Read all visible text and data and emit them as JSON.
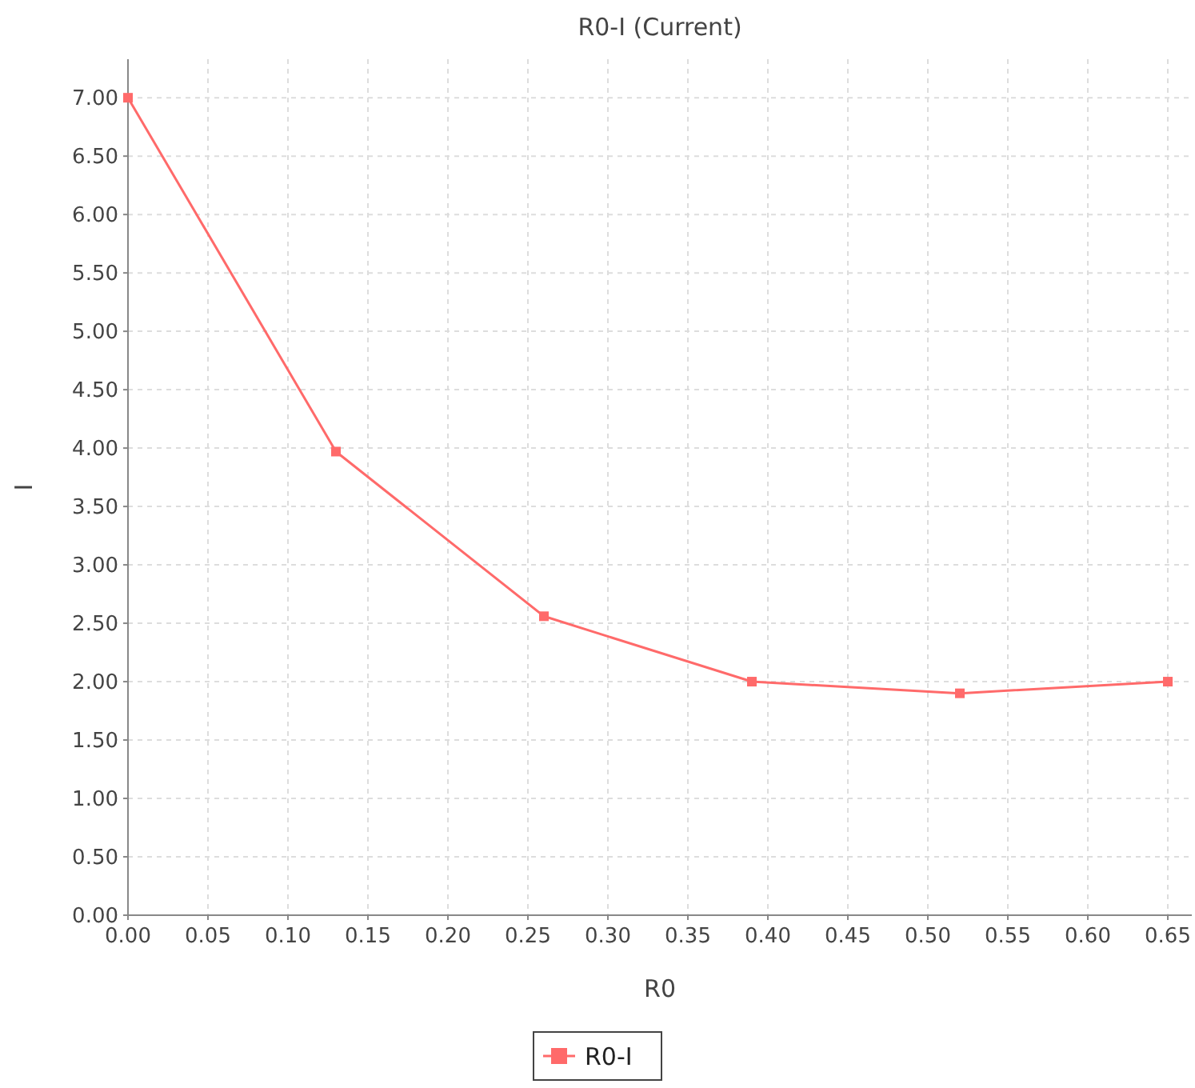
{
  "chart_data": {
    "type": "line",
    "title": "R0-I (Current)",
    "xlabel": "R0",
    "ylabel": "I",
    "x": [
      0,
      0.13,
      0.26,
      0.39,
      0.52,
      0.65
    ],
    "series": [
      {
        "name": "R0-I",
        "color": "#ff6a6a",
        "values": [
          7.0,
          3.97,
          2.56,
          2.0,
          1.9,
          2.0
        ]
      }
    ],
    "xlim": [
      0,
      0.665
    ],
    "xticks": [
      {
        "value": 0,
        "label": "0.00"
      },
      {
        "value": 0.05,
        "label": "0.05"
      },
      {
        "value": 0.1,
        "label": "0.10"
      },
      {
        "value": 0.15,
        "label": "0.15"
      },
      {
        "value": 0.2,
        "label": "0.20"
      },
      {
        "value": 0.25,
        "label": "0.25"
      },
      {
        "value": 0.3,
        "label": "0.30"
      },
      {
        "value": 0.35,
        "label": "0.35"
      },
      {
        "value": 0.4,
        "label": "0.40"
      },
      {
        "value": 0.45,
        "label": "0.45"
      },
      {
        "value": 0.5,
        "label": "0.50"
      },
      {
        "value": 0.55,
        "label": "0.55"
      },
      {
        "value": 0.6,
        "label": "0.60"
      },
      {
        "value": 0.65,
        "label": "0.65"
      }
    ],
    "ylim": [
      0,
      7.33
    ],
    "yticks": [
      {
        "value": 0,
        "label": "0.00"
      },
      {
        "value": 0.5,
        "label": "0.50"
      },
      {
        "value": 1,
        "label": "1.00"
      },
      {
        "value": 1.5,
        "label": "1.50"
      },
      {
        "value": 2,
        "label": "2.00"
      },
      {
        "value": 2.5,
        "label": "2.50"
      },
      {
        "value": 3,
        "label": "3.00"
      },
      {
        "value": 3.5,
        "label": "3.50"
      },
      {
        "value": 4,
        "label": "4.00"
      },
      {
        "value": 4.5,
        "label": "4.50"
      },
      {
        "value": 5,
        "label": "5.00"
      },
      {
        "value": 5.5,
        "label": "5.50"
      },
      {
        "value": 6,
        "label": "6.00"
      },
      {
        "value": 6.5,
        "label": "6.50"
      },
      {
        "value": 7,
        "label": "7.00"
      }
    ],
    "grid": true,
    "legend": "bottom",
    "marker": "square",
    "line_style": "solid"
  }
}
